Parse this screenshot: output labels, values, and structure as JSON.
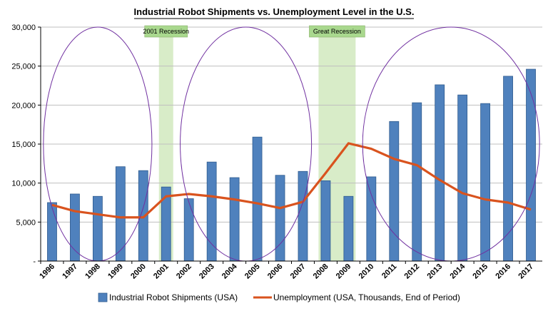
{
  "chart_data": {
    "type": "bar",
    "title": "Industrial Robot Shipments vs. Unemployment Level in the U.S.",
    "xlabel": "",
    "ylabel": "",
    "ylim": [
      0,
      30000
    ],
    "yticks": [
      0,
      5000,
      10000,
      15000,
      20000,
      25000,
      30000
    ],
    "ytick_labels": [
      "-",
      "5,000",
      "10,000",
      "15,000",
      "20,000",
      "25,000",
      "30,000"
    ],
    "categories": [
      "1996",
      "1997",
      "1998",
      "1999",
      "2000",
      "2001",
      "2002",
      "2003",
      "2004",
      "2005",
      "2006",
      "2007",
      "2008",
      "2009",
      "2010",
      "2011",
      "2012",
      "2013",
      "2014",
      "2015",
      "2016",
      "2017"
    ],
    "series": [
      {
        "name": "Industrial Robot Shipments (USA)",
        "type": "bar",
        "color": "#4f81bd",
        "values": [
          7500,
          8600,
          8300,
          12100,
          11600,
          9500,
          8000,
          12700,
          10700,
          15900,
          11000,
          11500,
          10300,
          8300,
          10800,
          17900,
          20300,
          22600,
          21300,
          20200,
          23700,
          24600
        ]
      },
      {
        "name": "Unemployment (USA, Thousands, End of Period)",
        "type": "line",
        "color": "#d9531e",
        "values": [
          7200,
          6400,
          6000,
          5600,
          5600,
          8300,
          8600,
          8300,
          7900,
          7400,
          6800,
          7600,
          11300,
          15100,
          14400,
          13100,
          12300,
          10400,
          8700,
          7900,
          7500,
          6600
        ]
      }
    ],
    "annotations": [
      {
        "label": "2001 Recession",
        "year": "2001"
      },
      {
        "label": "Great Recession",
        "start": "2008",
        "end": "2009"
      }
    ],
    "grid": true,
    "legend_position": "bottom",
    "colors": {
      "recession_band": "#d8ecc8",
      "recession_label_bg": "#a9d88e",
      "ellipse": "#7030a0"
    }
  }
}
